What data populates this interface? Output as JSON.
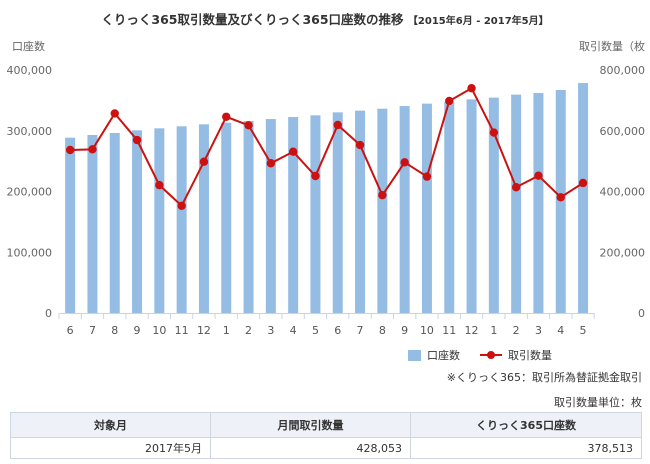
{
  "title": "くりっく365取引数量及びくりっく365口座数の推移",
  "period": "【2015年6月 - 2017年5月】",
  "chart_data": {
    "type": "bar",
    "categories": [
      "6",
      "7",
      "8",
      "9",
      "10",
      "11",
      "12",
      "1",
      "2",
      "3",
      "4",
      "5",
      "6",
      "7",
      "8",
      "9",
      "10",
      "11",
      "12",
      "1",
      "2",
      "3",
      "4",
      "5"
    ],
    "left_axis": {
      "label": "口座数",
      "ylim": [
        0,
        400000
      ],
      "ticks": [
        "0",
        "100,000",
        "200,000",
        "300,000",
        "400,000"
      ]
    },
    "right_axis": {
      "label": "取引数量（枚",
      "ylim": [
        0,
        800000
      ],
      "ticks": [
        "0",
        "200,000",
        "400,000",
        "600,000",
        "800,000"
      ]
    },
    "series": [
      {
        "name": "口座数",
        "type": "bar",
        "axis": "left",
        "color": "#95bde4",
        "values": [
          288600,
          293000,
          296300,
          300700,
          304000,
          307300,
          310600,
          313300,
          316000,
          319300,
          322600,
          325400,
          330300,
          333100,
          336300,
          340700,
          344600,
          347900,
          351700,
          354500,
          359400,
          362100,
          367100,
          378513
        ]
      },
      {
        "name": "取引数量",
        "type": "line",
        "axis": "right",
        "color": "#cc1111",
        "values": [
          536600,
          538800,
          657000,
          569500,
          421000,
          353000,
          498000,
          646000,
          618000,
          493000,
          531000,
          451000,
          619000,
          553000,
          388000,
          496000,
          449000,
          698000,
          740000,
          594000,
          414000,
          452000,
          381000,
          428053
        ]
      }
    ],
    "grid": false,
    "legend": "bottom-right"
  },
  "notes": {
    "source": "※くりっく365：取引所為替証拠金取引",
    "unit": "取引数量単位：枚"
  },
  "table": {
    "headers": [
      "対象月",
      "月間取引数量",
      "くりっく365口座数"
    ],
    "row": [
      "2017年5月",
      "428,053",
      "378,513"
    ]
  }
}
